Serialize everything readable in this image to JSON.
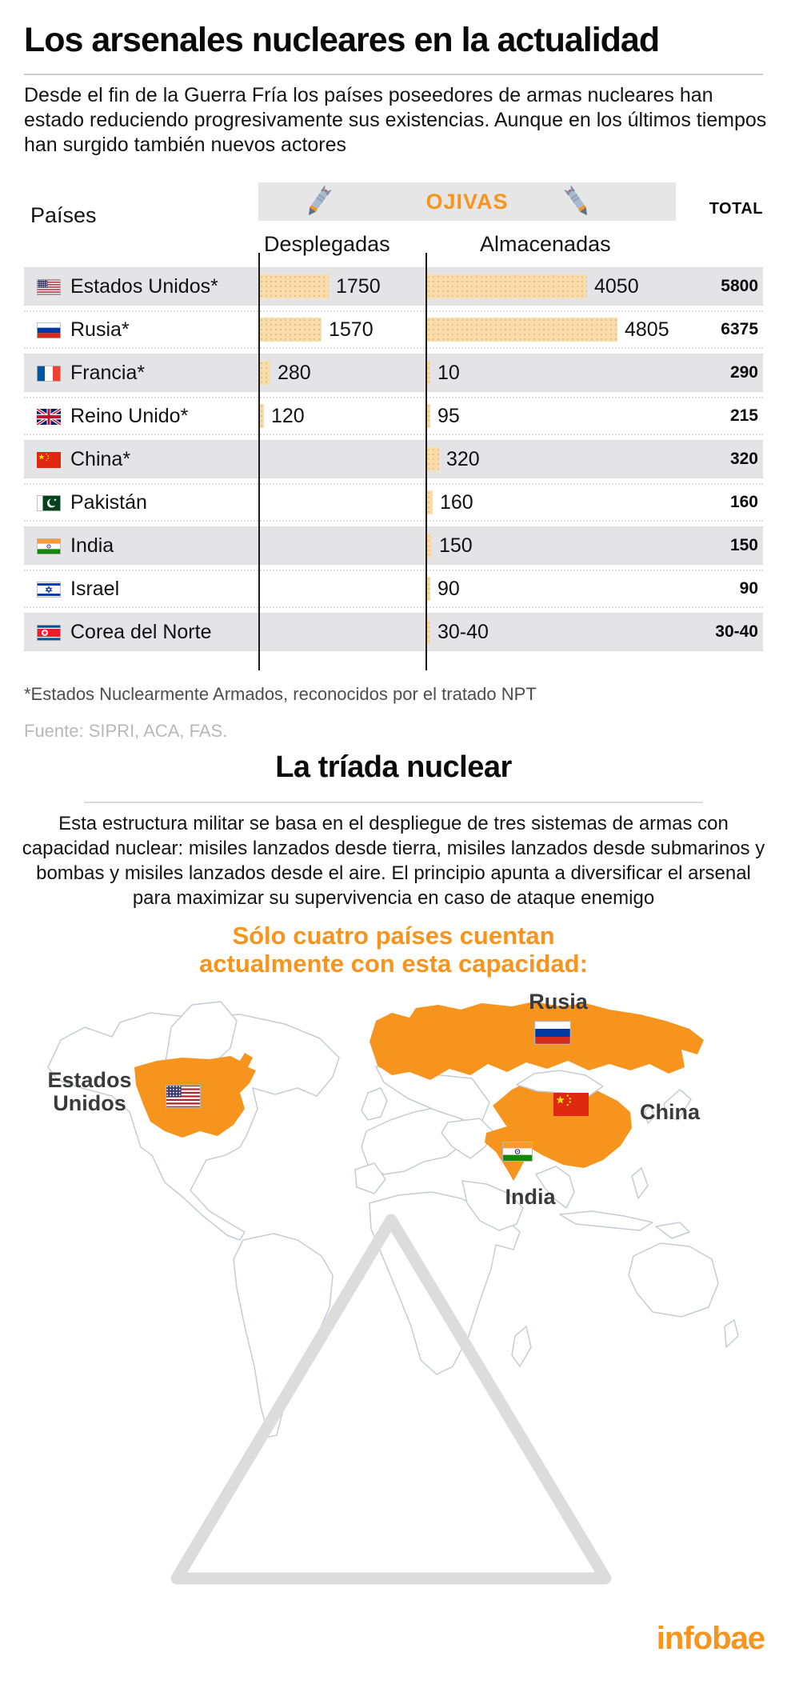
{
  "colors": {
    "accent_orange": "#f7941d",
    "bar_fill": "#f8dcab",
    "row_gray": "#e4e4e6",
    "band_gray": "#e6e6e6",
    "map_outline": "#c6cbd4",
    "triangle_gray": "#dcdcdc",
    "text_dark": "#111111",
    "muted_gray": "#b8b8b8"
  },
  "header": {
    "title": "Los arsenales nucleares en la actualidad",
    "intro": "Desde el fin de la Guerra Fría los países poseedores de armas nucleares han estado reduciendo progresivamente sus existencias. Aunque en los últimos tiempos han surgido también nuevos actores"
  },
  "table": {
    "countries_header": "Países",
    "group_header": "OJIVAS",
    "total_header": "TOTAL",
    "deployed_header": "Desplegadas",
    "stored_header": "Almacenadas"
  },
  "chart_data": {
    "type": "bar",
    "orientation": "horizontal",
    "title": "OJIVAS",
    "categories": [
      "Estados Unidos*",
      "Rusia*",
      "Francia*",
      "Reino Unido*",
      "China*",
      "Pakistán",
      "India",
      "Israel",
      "Corea del Norte"
    ],
    "flags": [
      "us",
      "ru",
      "fr",
      "gb",
      "cn",
      "pk",
      "in",
      "il",
      "kp"
    ],
    "series": [
      {
        "name": "Desplegadas",
        "values": [
          1750,
          1570,
          280,
          120,
          null,
          null,
          null,
          null,
          null
        ]
      },
      {
        "name": "Almacenadas",
        "values": [
          4050,
          4805,
          10,
          95,
          320,
          160,
          150,
          90,
          "30-40"
        ]
      }
    ],
    "totals": [
      "5800",
      "6375",
      "290",
      "215",
      "320",
      "160",
      "150",
      "90",
      "30-40"
    ],
    "value_axis_max": 4805,
    "legend_position": "top",
    "grid": false
  },
  "footnote": "*Estados Nuclearmente Armados, reconocidos por el tratado NPT",
  "source": "Fuente: SIPRI, ACA, FAS.",
  "triad": {
    "title": "La tríada nuclear",
    "description": "Esta estructura militar se basa en el despliegue de tres sistemas de armas con capacidad nuclear: misiles lanzados desde tierra, misiles lanzados desde submarinos y bombas y misiles lanzados desde el aire. El principio apunta a diversificar el arsenal para maximizar su supervivencia en caso de ataque enemigo",
    "headline_line1": "Sólo cuatro países cuentan",
    "headline_line2": "actualmente con esta capacidad:"
  },
  "map": {
    "highlighted_countries": [
      "Estados Unidos",
      "Rusia",
      "China",
      "India"
    ],
    "label_us_line1": "Estados",
    "label_us_line2": "Unidos",
    "label_ru": "Rusia",
    "label_cn": "China",
    "label_in": "India"
  },
  "footer": {
    "logo_text": "infobae"
  }
}
